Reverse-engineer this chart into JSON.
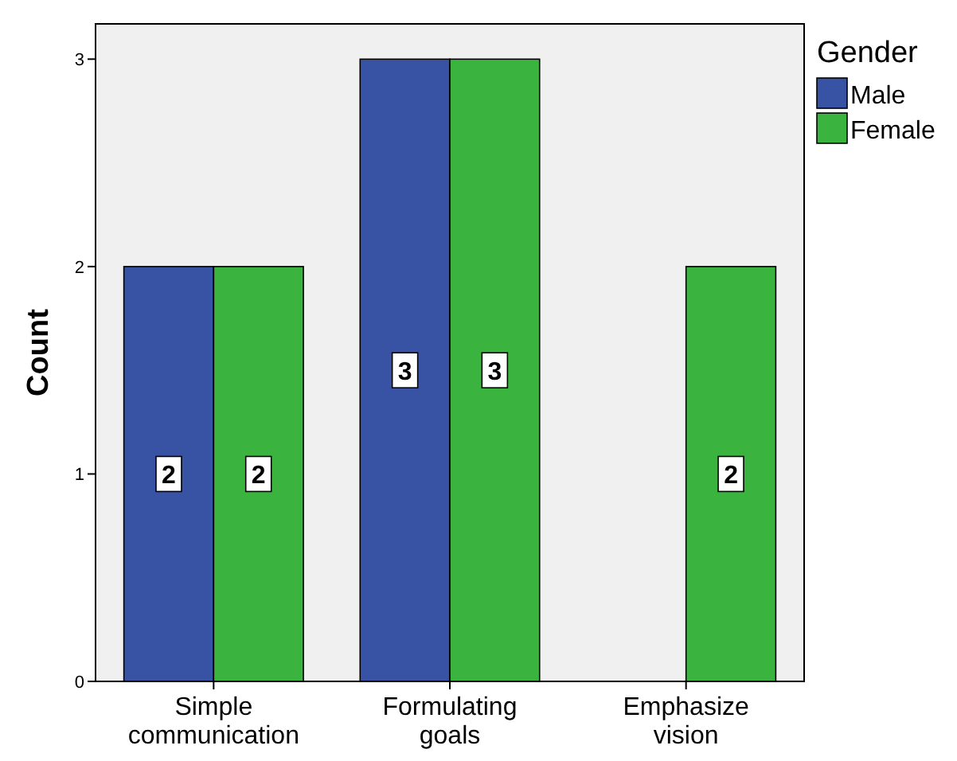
{
  "chart_data": {
    "type": "bar",
    "ylabel": "Count",
    "legend_title": "Gender",
    "categories": [
      "Simple communication",
      "Formulating goals",
      "Emphasize vision"
    ],
    "series": [
      {
        "name": "Male",
        "color": "#3953a4",
        "values": [
          2,
          3,
          0
        ],
        "value_labels": [
          "2",
          "3",
          null
        ]
      },
      {
        "name": "Female",
        "color": "#3bb33f",
        "values": [
          2,
          3,
          2
        ],
        "value_labels": [
          "2",
          "3",
          "2"
        ]
      }
    ],
    "ylim": [
      0,
      3.17
    ],
    "yticks": [
      0,
      1,
      2,
      3
    ],
    "grid": false,
    "legend": "top right"
  }
}
